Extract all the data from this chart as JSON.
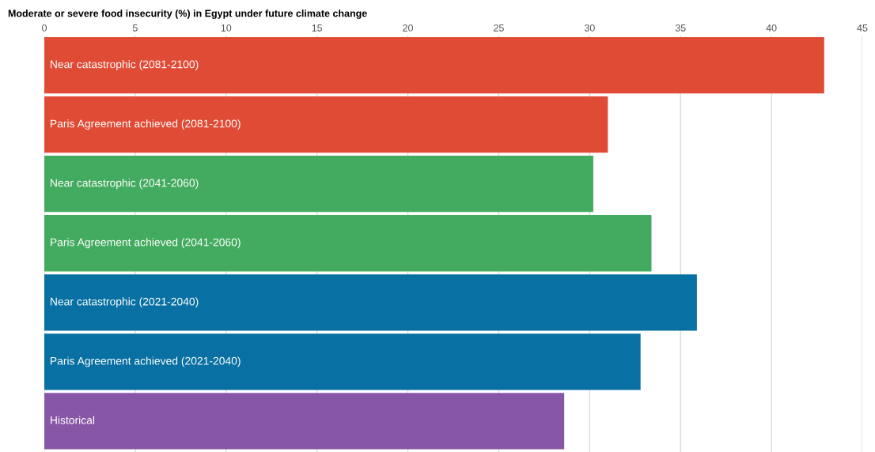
{
  "chart_data": {
    "type": "bar",
    "orientation": "horizontal",
    "title": "Moderate or severe food insecurity (%) in Egypt under future climate change",
    "categories": [
      "Near catastrophic (2081-2100)",
      "Paris Agreement achieved (2081-2100)",
      "Near catastrophic (2041-2060)",
      "Paris Agreement achieved (2041-2060)",
      "Near catastrophic (2021-2040)",
      "Paris Agreement achieved (2021-2040)",
      "Historical"
    ],
    "values": [
      42.9,
      31.0,
      30.2,
      33.4,
      35.9,
      32.8,
      28.6
    ],
    "colors": [
      "#e04b35",
      "#e04b35",
      "#43ab5f",
      "#43ab5f",
      "#0870a2",
      "#0870a2",
      "#8856a6"
    ],
    "xlim": [
      0,
      45
    ],
    "xticks": [
      0,
      5,
      10,
      15,
      20,
      25,
      30,
      35,
      40,
      45
    ],
    "grid": "x"
  }
}
